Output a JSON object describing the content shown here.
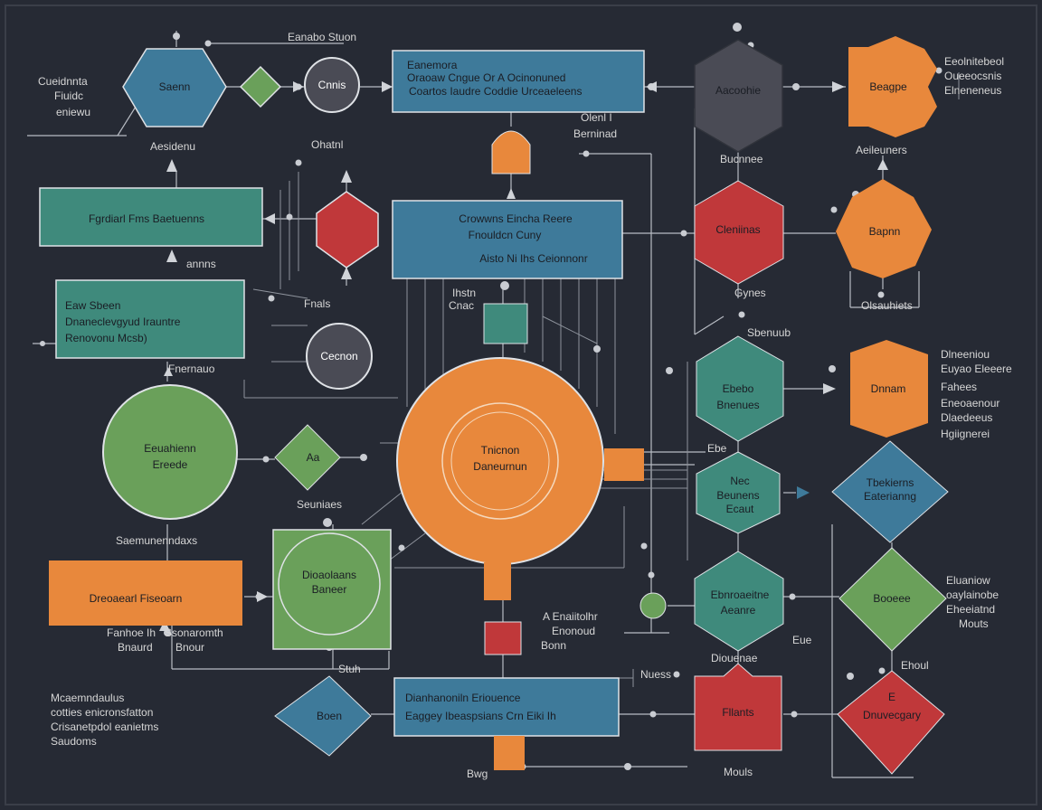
{
  "colors": {
    "background": "#262a34",
    "blue": "#3e7a9a",
    "teal": "#3f8a7c",
    "green": "#6aa05a",
    "orange": "#e8883c",
    "red": "#c0383a",
    "gray": "#4a4b55",
    "line": "#b8bcc4"
  },
  "labels": {
    "top_center": "Eanabo Stuon",
    "top_left": [
      "Cueidnnta",
      "Fiuidc",
      "eniewu"
    ],
    "hex_left": "Saenn",
    "circle_top": "Cnnis",
    "top_box": [
      "Eanemora",
      "Oraoaw Cngue Or A Ocinonuned",
      "Coartos Iaudre Coddie Urceaeleens"
    ],
    "under_hex_left": "Aesidenu",
    "box_left_1": "Fgrdiarl Fms Baetuenns",
    "chann": "Ohatnl",
    "small_arr": "annns",
    "box_left_2": [
      "Eaw Sbeen",
      "Dnaneclevgyud Irauntre",
      "Renovonu Mcsb)"
    ],
    "fnals": "Fnals",
    "left_small": "Fnernauo",
    "small_circle": "Cecnon",
    "center_box": [
      "Crowwns Eincha Reere",
      "Fnouldcn Cuny",
      "Aisto Ni Ihs Ceionnonr"
    ],
    "tiny_block": [
      "Ihstn",
      "Cnac"
    ],
    "big_circle": [
      "Tnicnon",
      "Daneurnun"
    ],
    "big_green_circle": [
      "Eeuahienn",
      "Ereede"
    ],
    "diamond_small": "Aa",
    "seunes": "Seuniaes",
    "samoufe": "Saemunenndaxs",
    "box_orange_left": "Dreoaearl Fiseoarn",
    "square_green": [
      "Dioaolaans",
      "Baneer"
    ],
    "under_orange": [
      "Fanhoe Ih",
      "Bnaurd"
    ],
    "under_orange_2": [
      "Ssonaromth",
      "Bnour"
    ],
    "stuth": "Stuh",
    "bottom_left_text": [
      "Mcaemndaulus",
      "cotties enicronsfatton",
      "Crisanetpdol eanietms",
      "Saudoms"
    ],
    "diamond_bottom_left": "Boen",
    "bottom_box": [
      "Dianhanoniln Eriouence",
      "Eaggey Ibeaspsians Crn Eiki Ih"
    ],
    "bottom_label": "Bwg",
    "small_red_labels": [
      "A Enaiitolhr",
      "Enonoud",
      "Bonn"
    ],
    "octagon_dark": "Aacoohie",
    "brontine": "Bucnnee",
    "hex_orange_top": "Beagpe",
    "right_top_text": [
      "Eeolnitebeol",
      "Oueeocsnis",
      "Elneneneus"
    ],
    "oeeen_arrow": [
      "Olenl I",
      "Berninad"
    ],
    "aedouers": "Aeileuners",
    "red_oct": "Cleniinas",
    "hex_orange_2": "Bapnn",
    "below_red": "Gynes",
    "right_mid_label": "Olsauhiets",
    "sbanuub": "Sbenuub",
    "teal_oct": [
      "Ebebo",
      "Bnenues"
    ],
    "orange_oct_2": "Dnnam",
    "right_list": [
      "Dlneeniou",
      "Euyao Eleeere",
      "Fahees",
      "Eneoaenour",
      "Dlaedeeus",
      "Hgiignerei"
    ],
    "ebe": "Ebe",
    "teal_oct_2": [
      "Nec",
      "Beunens",
      "Ecaut"
    ],
    "diamond_blue_right": [
      "Tbekierns",
      "Eaterianng"
    ],
    "teal_oct_3": [
      "Ebnroaeitne",
      "Aeanre"
    ],
    "diamond_green_right": "Booeee",
    "right_bottom_text": [
      "Eluaniow",
      "oaylainobe",
      "Eheeiatnd",
      "Mouts"
    ],
    "eue": "Eue",
    "diouenae": "Diouenae",
    "nuess": "Nuess",
    "red_square_bottom": "Fllants",
    "ehou": "Ehoul",
    "diamond_red_right": [
      "E",
      "Dnuvecgary"
    ],
    "mouls": "Mouls"
  }
}
